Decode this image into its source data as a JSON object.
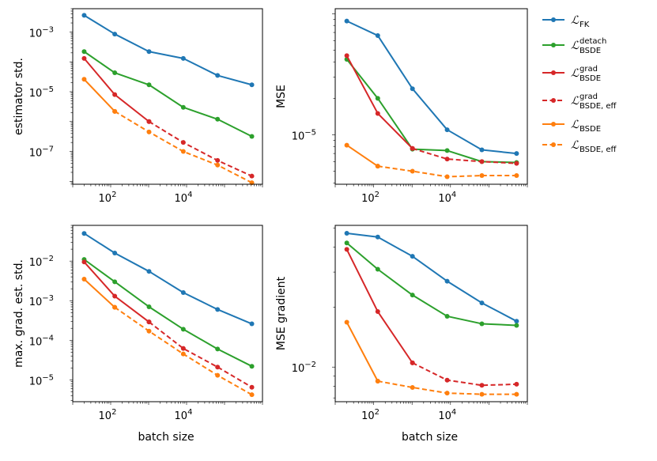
{
  "chart_data": {
    "type": "line",
    "x": [
      20,
      128,
      1024,
      8192,
      65536,
      524288
    ],
    "xaxis": {
      "scale": "log",
      "range": [
        10,
        1000000
      ],
      "ticks": [
        {
          "value": 100,
          "label": "10",
          "exp": "2"
        },
        {
          "value": 10000,
          "label": "10",
          "exp": "4"
        }
      ]
    },
    "legend": {
      "position": "right",
      "entries": [
        {
          "key": "fk",
          "main": "ℒ",
          "sub": "FK",
          "sup": "",
          "color": "#1f77b4",
          "dashed": false
        },
        {
          "key": "bsde_detach",
          "main": "ℒ",
          "sub": "BSDE",
          "sup": "detach",
          "color": "#2ca02c",
          "dashed": false
        },
        {
          "key": "bsde_grad",
          "main": "ℒ",
          "sub": "BSDE",
          "sup": "grad",
          "color": "#d62728",
          "dashed": false
        },
        {
          "key": "bsde_grad_eff",
          "main": "ℒ",
          "sub": "BSDE, eff",
          "sup": "grad",
          "color": "#d62728",
          "dashed": true
        },
        {
          "key": "bsde",
          "main": "ℒ",
          "sub": "BSDE",
          "sup": "",
          "color": "#ff7f0e",
          "dashed": false
        },
        {
          "key": "bsde_eff",
          "main": "ℒ",
          "sub": "BSDE, eff",
          "sup": "",
          "color": "#ff7f0e",
          "dashed": true
        }
      ]
    },
    "panels": [
      {
        "id": "top-left",
        "ylabel": "estimator std.",
        "xlabel": "",
        "yscale": "log",
        "ylim": [
          8e-09,
          0.006
        ],
        "yticks": [
          {
            "value": 0.001,
            "label": "10",
            "exp": "−3"
          },
          {
            "value": 1e-05,
            "label": "10",
            "exp": "−5"
          },
          {
            "value": 1e-07,
            "label": "10",
            "exp": "−7"
          }
        ],
        "series": [
          {
            "key": "fk",
            "values": [
              0.0036,
              0.00085,
              0.00022,
              0.00013,
              3.5e-05,
              1.7e-05
            ]
          },
          {
            "key": "bsde_detach",
            "values": [
              0.00022,
              4.3e-05,
              1.7e-05,
              3e-06,
              1.2e-06,
              3.2e-07
            ]
          },
          {
            "key": "bsde_grad",
            "values": [
              0.00013,
              8e-06,
              1e-06,
              null,
              null,
              null
            ]
          },
          {
            "key": "bsde_grad_eff",
            "values": [
              null,
              null,
              1e-06,
              2e-07,
              5e-08,
              1.5e-08
            ]
          },
          {
            "key": "bsde",
            "values": [
              2.6e-05,
              2.2e-06,
              null,
              null,
              null,
              null
            ]
          },
          {
            "key": "bsde_eff",
            "values": [
              null,
              2.2e-06,
              4.5e-07,
              1e-07,
              3.5e-08,
              9e-09
            ]
          }
        ]
      },
      {
        "id": "top-right",
        "ylabel": "MSE",
        "xlabel": "",
        "yscale": "log",
        "ylim": [
          3.9e-06,
          0.00011
        ],
        "yticks": [
          {
            "value": 1e-05,
            "label": "10",
            "exp": "−5"
          }
        ],
        "series": [
          {
            "key": "fk",
            "values": [
              8.7e-05,
              6.6e-05,
              2.4e-05,
              1.1e-05,
              7.5e-06,
              7e-06
            ]
          },
          {
            "key": "bsde_detach",
            "values": [
              4.2e-05,
              2e-05,
              7.6e-06,
              7.4e-06,
              6e-06,
              5.9e-06
            ]
          },
          {
            "key": "bsde_grad",
            "values": [
              4.5e-05,
              1.5e-05,
              7.7e-06,
              null,
              null,
              null
            ]
          },
          {
            "key": "bsde_grad_eff",
            "values": [
              null,
              null,
              7.7e-06,
              6.3e-06,
              6e-06,
              5.8e-06
            ]
          },
          {
            "key": "bsde",
            "values": [
              8.2e-06,
              5.5e-06,
              null,
              null,
              null,
              null
            ]
          },
          {
            "key": "bsde_eff",
            "values": [
              null,
              5.5e-06,
              5e-06,
              4.5e-06,
              4.6e-06,
              4.6e-06
            ]
          }
        ]
      },
      {
        "id": "bottom-left",
        "ylabel": "max. grad. est. std.",
        "xlabel": "batch size",
        "yscale": "log",
        "ylim": [
          2.8e-06,
          0.08
        ],
        "yticks": [
          {
            "value": 0.01,
            "label": "10",
            "exp": "−2"
          },
          {
            "value": 0.001,
            "label": "10",
            "exp": "−3"
          },
          {
            "value": 0.0001,
            "label": "10",
            "exp": "−4"
          },
          {
            "value": 1e-05,
            "label": "10",
            "exp": "−5"
          }
        ],
        "series": [
          {
            "key": "fk",
            "values": [
              0.05,
              0.016,
              0.0055,
              0.0016,
              0.0006,
              0.00026
            ]
          },
          {
            "key": "bsde_detach",
            "values": [
              0.011,
              0.003,
              0.0007,
              0.00019,
              6e-05,
              2.2e-05
            ]
          },
          {
            "key": "bsde_grad",
            "values": [
              0.0095,
              0.0013,
              0.00029,
              null,
              null,
              null
            ]
          },
          {
            "key": "bsde_grad_eff",
            "values": [
              null,
              null,
              0.00029,
              6.2e-05,
              2.1e-05,
              6.5e-06
            ]
          },
          {
            "key": "bsde",
            "values": [
              0.0035,
              0.00068,
              null,
              null,
              null,
              null
            ]
          },
          {
            "key": "bsde_eff",
            "values": [
              null,
              0.00068,
              0.00017,
              4.5e-05,
              1.3e-05,
              4.2e-06
            ]
          }
        ]
      },
      {
        "id": "bottom-right",
        "ylabel": "MSE gradient",
        "xlabel": "batch size",
        "yscale": "log",
        "ylim": [
          0.0067,
          0.0515
        ],
        "yticks": [
          {
            "value": 0.01,
            "label": "10",
            "exp": "−2"
          }
        ],
        "series": [
          {
            "key": "fk",
            "values": [
              0.047,
              0.045,
              0.036,
              0.027,
              0.021,
              0.017
            ]
          },
          {
            "key": "bsde_detach",
            "values": [
              0.042,
              0.031,
              0.023,
              0.018,
              0.0165,
              0.0162
            ]
          },
          {
            "key": "bsde_grad",
            "values": [
              0.039,
              0.019,
              0.0105,
              null,
              null,
              null
            ]
          },
          {
            "key": "bsde_grad_eff",
            "values": [
              null,
              null,
              0.0105,
              0.0086,
              0.0081,
              0.0082
            ]
          },
          {
            "key": "bsde",
            "values": [
              0.0168,
              0.0085,
              null,
              null,
              null,
              null
            ]
          },
          {
            "key": "bsde_eff",
            "values": [
              null,
              0.0085,
              0.0079,
              0.0074,
              0.0073,
              0.0073
            ]
          }
        ]
      }
    ]
  }
}
